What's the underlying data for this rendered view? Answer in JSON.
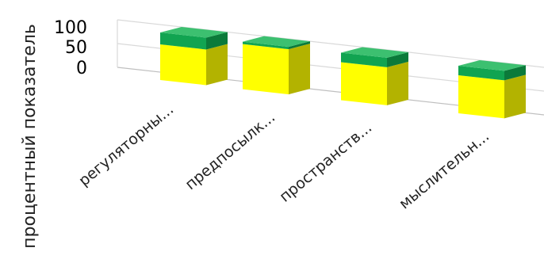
{
  "chart_data": {
    "type": "bar",
    "stacked": true,
    "three_d": true,
    "title": "",
    "xlabel": "",
    "ylabel": "процентный показатель",
    "ylim": [
      0,
      100
    ],
    "yticks": [
      "100",
      "50",
      "0"
    ],
    "categories": [
      "регуляторны...",
      "предпосылк...",
      "пространств...",
      "мыслительн..."
    ],
    "series": [
      {
        "values": [
          75,
          95,
          80,
          80
        ]
      },
      {
        "values": [
          25,
          5,
          20,
          20
        ]
      }
    ],
    "grid": true,
    "legend": "none"
  },
  "colors": {
    "series_front": [
      "#ffff00",
      "#11a451"
    ],
    "series_top": [
      "#ffff66",
      "#3cc070"
    ],
    "series_side": [
      "#b3b300",
      "#0b7a3a"
    ],
    "grid": "#d9d9d9",
    "axis": "#bfbfbf"
  }
}
